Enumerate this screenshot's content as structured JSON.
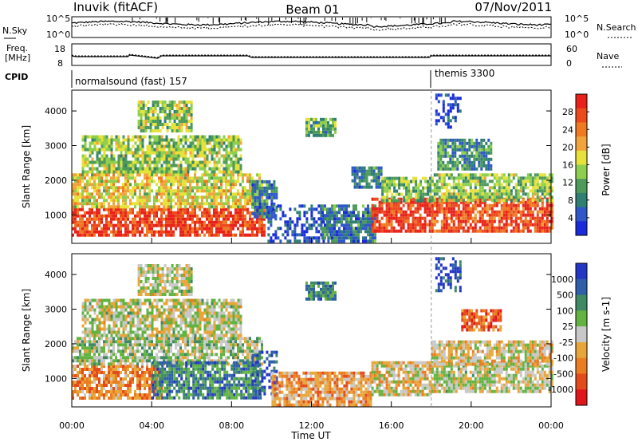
{
  "header": {
    "station": "Inuvik (fitACF)",
    "beam": "Beam 01",
    "date": "07/Nov/2011"
  },
  "noise_panel": {
    "left_label": "N.Sky",
    "right_label": "N.Search",
    "left_ticks": [
      "10^5",
      "10^0"
    ],
    "right_ticks": [
      "10^5",
      "10^0"
    ]
  },
  "freq_panel": {
    "left_label_1": "Freq.",
    "left_label_2": "[MHz]",
    "left_ticks": [
      "18",
      "8"
    ],
    "right_label": "Nave",
    "right_ticks": [
      "60",
      "0"
    ]
  },
  "cpid_panel": {
    "label": "CPID",
    "modes": [
      {
        "name": "normalsound (fast) 157",
        "start_hour": 0
      },
      {
        "name": "themis 3300",
        "start_hour": 18
      }
    ]
  },
  "colors": {
    "power": [
      "#1a2bd9",
      "#2f57c9",
      "#2f7f73",
      "#4e9a5a",
      "#8fcf4e",
      "#e6e23a",
      "#f2a33a",
      "#ef7a21",
      "#ec4a1b",
      "#e8221b"
    ],
    "velocity": [
      "#2436c4",
      "#2e5fa8",
      "#3f8a64",
      "#63b342",
      "#c8c8c8",
      "#e8a63a",
      "#ea7d22",
      "#e44b1b",
      "#e0161b"
    ]
  },
  "chart_data": [
    {
      "type": "heatmap",
      "name": "power",
      "ylabel": "Slant Range [km]",
      "xlabel": "",
      "x_range_hours": [
        0,
        24
      ],
      "ylim": [
        180,
        4600
      ],
      "yticks": [
        1000,
        2000,
        3000,
        4000
      ],
      "colorbar": {
        "label": "Power [dB]",
        "range": [
          0,
          32
        ],
        "ticks": [
          4,
          8,
          12,
          16,
          20,
          24,
          28
        ]
      },
      "regions": [
        {
          "t0": 0.0,
          "t1": 9.7,
          "r0": 400,
          "r1": 1200,
          "level": 0.9
        },
        {
          "t0": 0.0,
          "t1": 9.5,
          "r0": 1200,
          "r1": 2200,
          "level": 0.55
        },
        {
          "t0": 0.5,
          "t1": 8.5,
          "r0": 2200,
          "r1": 3300,
          "level": 0.45
        },
        {
          "t0": 3.3,
          "t1": 6.0,
          "r0": 3400,
          "r1": 4300,
          "level": 0.45
        },
        {
          "t0": 9.0,
          "t1": 10.2,
          "r0": 900,
          "r1": 2000,
          "level": 0.25
        },
        {
          "t0": 9.8,
          "t1": 13.0,
          "r0": 200,
          "r1": 1300,
          "level": 0.12
        },
        {
          "t0": 11.7,
          "t1": 13.2,
          "r0": 3300,
          "r1": 3800,
          "level": 0.35
        },
        {
          "t0": 12.5,
          "t1": 15.2,
          "r0": 200,
          "r1": 1300,
          "level": 0.25
        },
        {
          "t0": 14.0,
          "t1": 15.5,
          "r0": 1800,
          "r1": 2400,
          "level": 0.25
        },
        {
          "t0": 15.0,
          "t1": 18.0,
          "r0": 500,
          "r1": 1500,
          "level": 0.9
        },
        {
          "t0": 15.5,
          "t1": 18.0,
          "r0": 1400,
          "r1": 2100,
          "level": 0.4
        },
        {
          "t0": 18.0,
          "t1": 24.0,
          "r0": 500,
          "r1": 1500,
          "level": 0.85
        },
        {
          "t0": 18.0,
          "t1": 24.0,
          "r0": 1400,
          "r1": 2200,
          "level": 0.45
        },
        {
          "t0": 18.3,
          "t1": 21.0,
          "r0": 2300,
          "r1": 3200,
          "level": 0.3
        },
        {
          "t0": 18.2,
          "t1": 19.5,
          "r0": 3500,
          "r1": 4500,
          "level": 0.1
        }
      ]
    },
    {
      "type": "heatmap",
      "name": "velocity",
      "ylabel": "Slant Range [km]",
      "xlabel": "Time UT",
      "x_range_hours": [
        0,
        24
      ],
      "xticks": [
        "00:00",
        "04:00",
        "08:00",
        "12:00",
        "16:00",
        "20:00",
        "00:00"
      ],
      "ylim": [
        180,
        4600
      ],
      "yticks": [
        1000,
        2000,
        3000,
        4000
      ],
      "colorbar": {
        "label": "Velocity [m s-1]",
        "ticks": [
          "1000",
          "500",
          "100",
          "25",
          "-25",
          "-100",
          "-500",
          "-1000"
        ]
      },
      "regions": [
        {
          "t0": 0.0,
          "t1": 4.5,
          "r0": 400,
          "r1": 1400,
          "level": 0.7
        },
        {
          "t0": 0.0,
          "t1": 9.5,
          "r0": 1400,
          "r1": 2200,
          "level": 0.45
        },
        {
          "t0": 4.0,
          "t1": 9.5,
          "r0": 400,
          "r1": 1500,
          "level": 0.25
        },
        {
          "t0": 0.5,
          "t1": 8.5,
          "r0": 2200,
          "r1": 3300,
          "level": 0.5
        },
        {
          "t0": 3.3,
          "t1": 6.0,
          "r0": 3400,
          "r1": 4300,
          "level": 0.5
        },
        {
          "t0": 9.0,
          "t1": 10.3,
          "r0": 600,
          "r1": 1800,
          "level": 0.12
        },
        {
          "t0": 10.0,
          "t1": 15.0,
          "r0": 200,
          "r1": 1200,
          "level": 0.65
        },
        {
          "t0": 11.7,
          "t1": 13.2,
          "r0": 3300,
          "r1": 3800,
          "level": 0.25
        },
        {
          "t0": 15.0,
          "t1": 18.0,
          "r0": 500,
          "r1": 1500,
          "level": 0.55
        },
        {
          "t0": 18.0,
          "t1": 24.0,
          "r0": 600,
          "r1": 1500,
          "level": 0.5
        },
        {
          "t0": 18.0,
          "t1": 24.0,
          "r0": 1400,
          "r1": 2100,
          "level": 0.55
        },
        {
          "t0": 19.5,
          "t1": 21.5,
          "r0": 2400,
          "r1": 3000,
          "level": 0.8
        },
        {
          "t0": 18.2,
          "t1": 19.5,
          "r0": 3500,
          "r1": 4500,
          "level": 0.1
        }
      ]
    }
  ]
}
